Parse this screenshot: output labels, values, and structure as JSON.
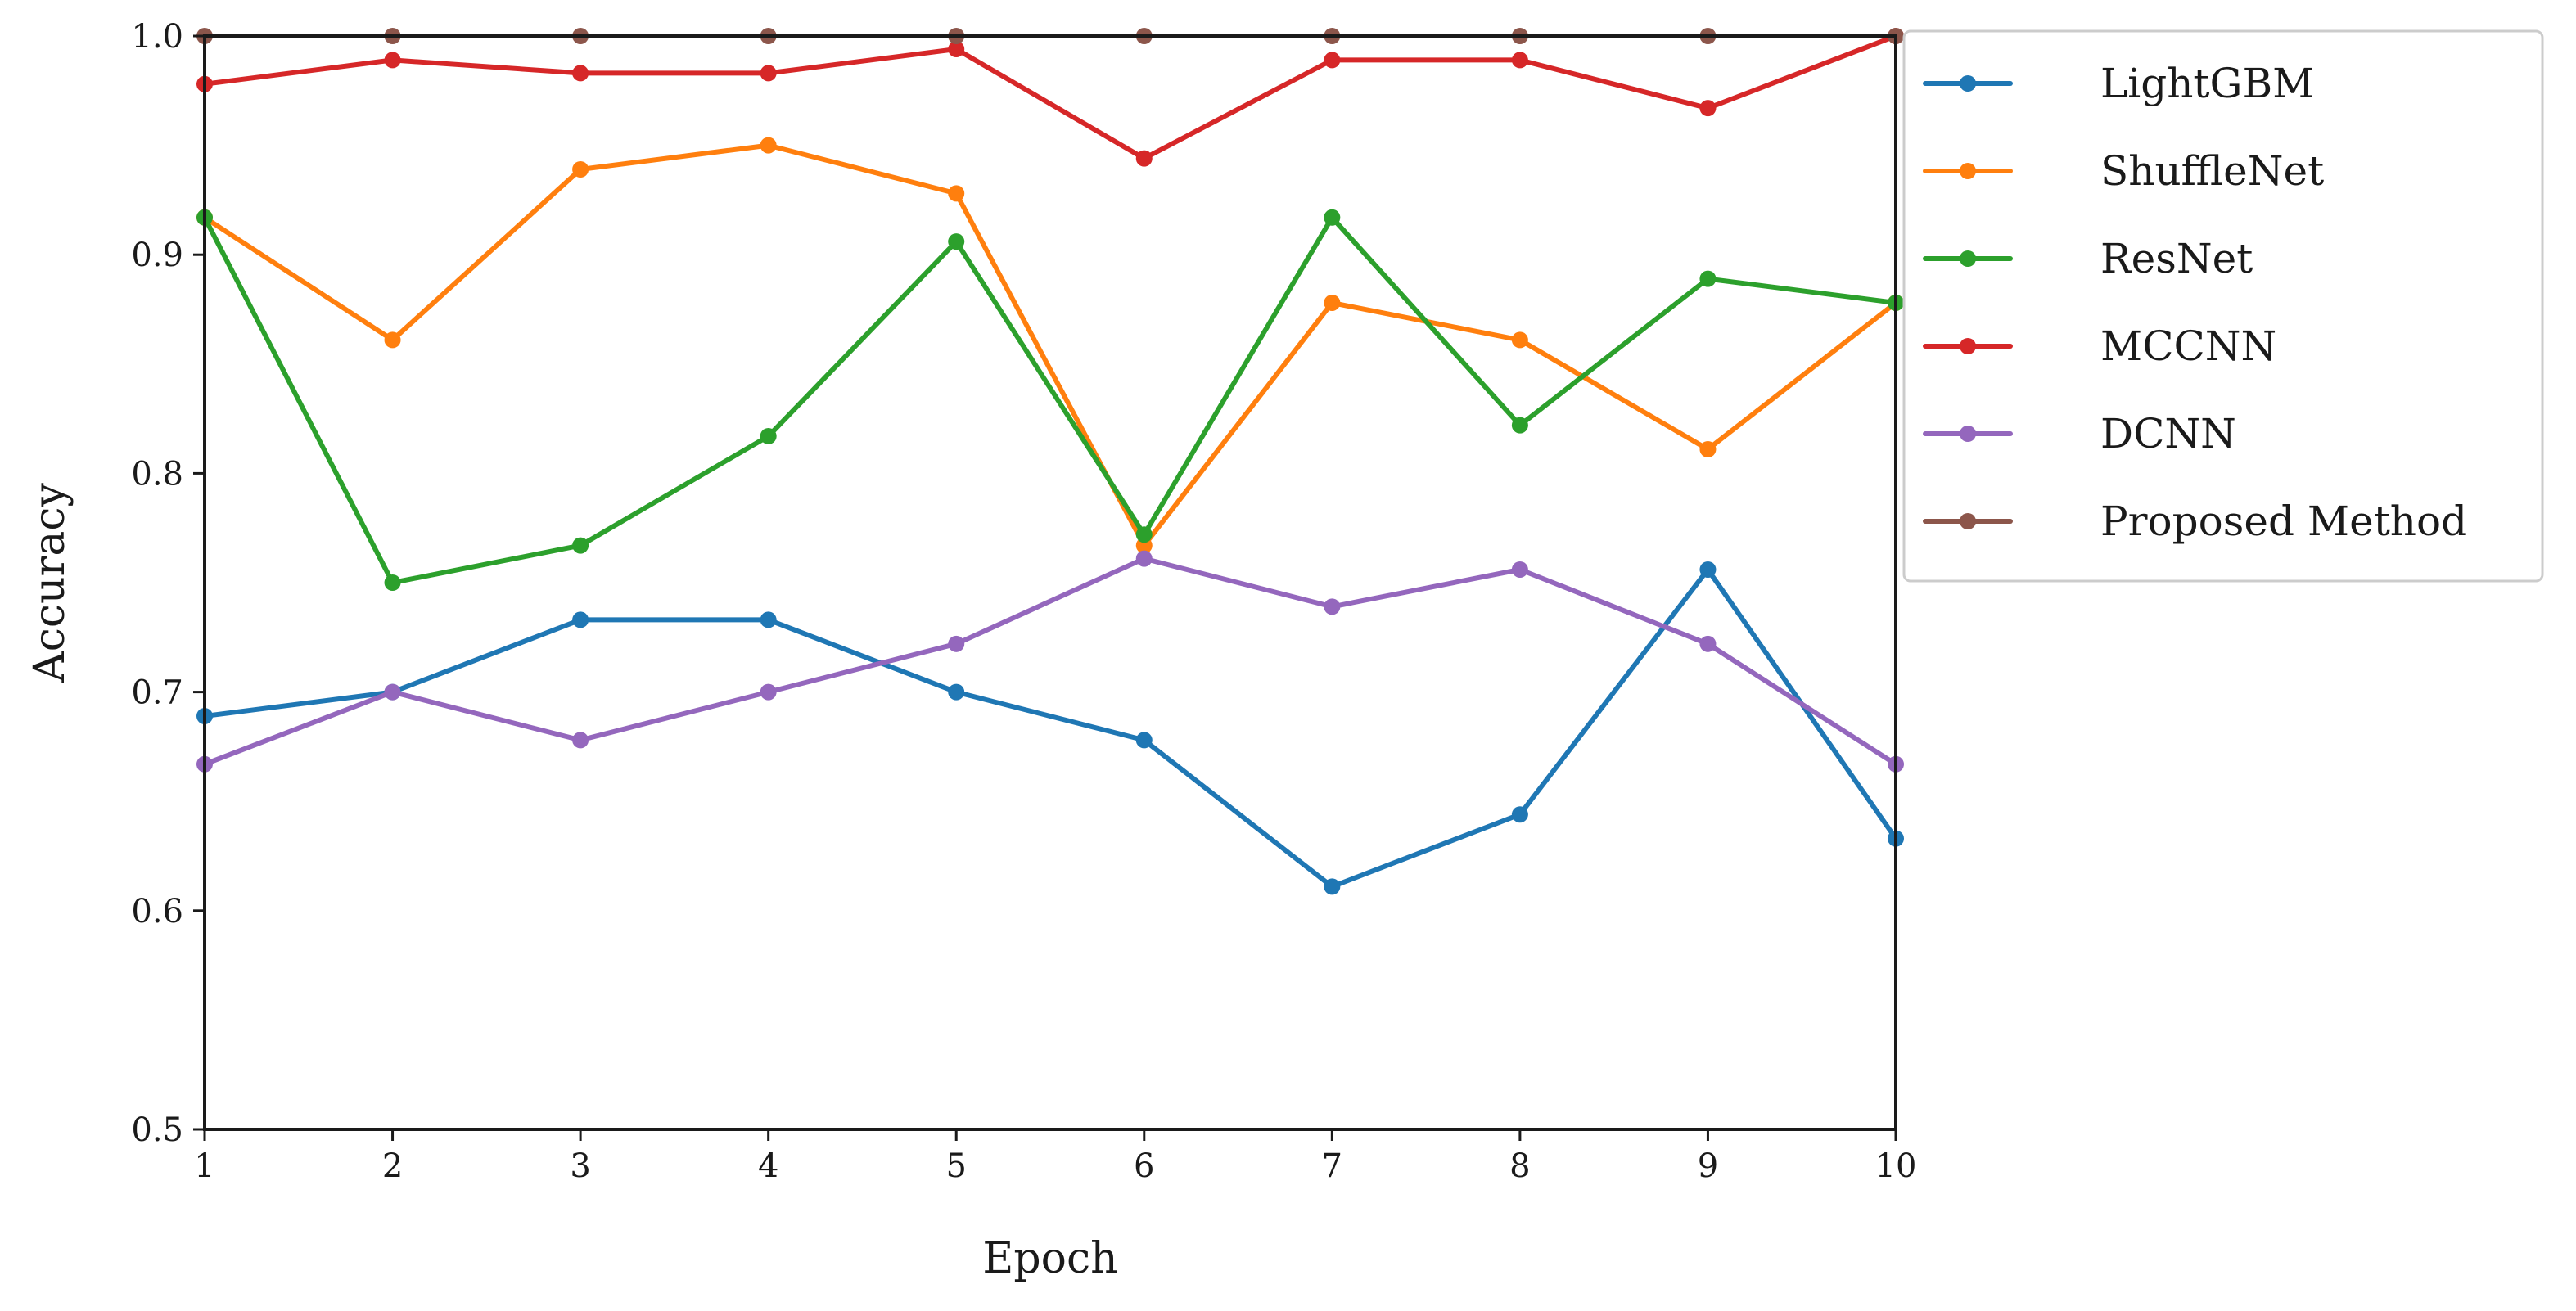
{
  "chart_data": {
    "type": "line",
    "xlabel": "Epoch",
    "ylabel": "Accuracy",
    "x": [
      1,
      2,
      3,
      4,
      5,
      6,
      7,
      8,
      9,
      10
    ],
    "xlim": [
      1,
      10
    ],
    "ylim": [
      0.5,
      1.0
    ],
    "xticks": [
      1,
      2,
      3,
      4,
      5,
      6,
      7,
      8,
      9,
      10
    ],
    "yticks": [
      "0.5",
      "0.6",
      "0.7",
      "0.8",
      "0.9",
      "1.0"
    ],
    "grid": false,
    "legend_position": "outside-top-right",
    "series": [
      {
        "name": "LightGBM",
        "color": "#1f77b4",
        "values": [
          0.689,
          0.7,
          0.733,
          0.733,
          0.7,
          0.678,
          0.611,
          0.644,
          0.756,
          0.633
        ]
      },
      {
        "name": "ShuffleNet",
        "color": "#ff7f0e",
        "values": [
          0.917,
          0.861,
          0.939,
          0.95,
          0.928,
          0.767,
          0.878,
          0.861,
          0.811,
          0.878
        ]
      },
      {
        "name": "ResNet",
        "color": "#2ca02c",
        "values": [
          0.917,
          0.75,
          0.767,
          0.817,
          0.906,
          0.772,
          0.917,
          0.822,
          0.889,
          0.878
        ]
      },
      {
        "name": "MCCNN",
        "color": "#d62728",
        "values": [
          0.978,
          0.989,
          0.983,
          0.983,
          0.994,
          0.944,
          0.989,
          0.989,
          0.967,
          1.0
        ]
      },
      {
        "name": "DCNN",
        "color": "#9467bd",
        "values": [
          0.667,
          0.7,
          0.678,
          0.7,
          0.722,
          0.761,
          0.739,
          0.756,
          0.722,
          0.667
        ]
      },
      {
        "name": "Proposed Method",
        "color": "#8c564b",
        "values": [
          1.0,
          1.0,
          1.0,
          1.0,
          1.0,
          1.0,
          1.0,
          1.0,
          1.0,
          1.0
        ]
      }
    ]
  }
}
